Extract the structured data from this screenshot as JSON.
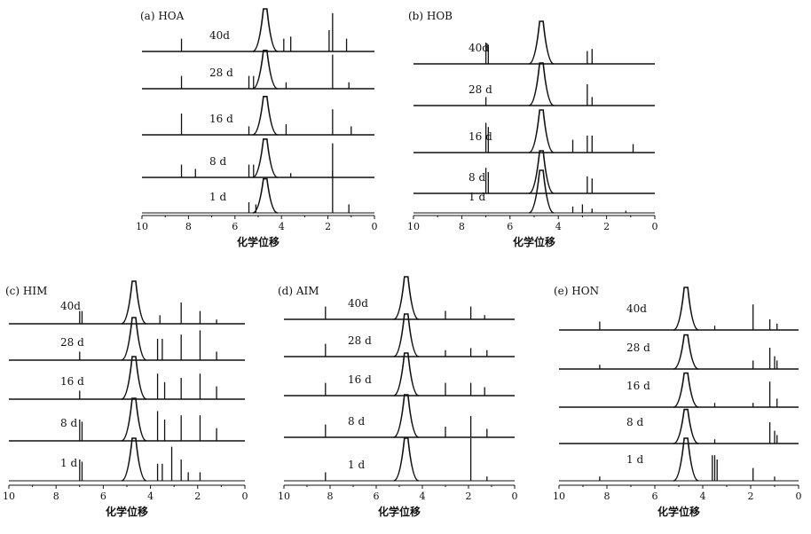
{
  "figure": {
    "x_axis_label": "化学位移"
  },
  "chart_data": [
    {
      "type": "line",
      "title": "(a) HOA",
      "xlabel": "化学位移",
      "xlim": [
        10,
        0
      ],
      "x_ticks": [
        10,
        8,
        6,
        4,
        2,
        0
      ],
      "series": [
        {
          "name": "40d",
          "peaks": [
            [
              8.3,
              0.3
            ],
            [
              4.7,
              1.0
            ],
            [
              3.9,
              0.3
            ],
            [
              3.6,
              0.35
            ],
            [
              1.95,
              0.5
            ],
            [
              1.8,
              0.9
            ],
            [
              1.2,
              0.3
            ]
          ]
        },
        {
          "name": "28 d",
          "peaks": [
            [
              8.3,
              0.3
            ],
            [
              5.4,
              0.3
            ],
            [
              5.2,
              0.3
            ],
            [
              4.7,
              0.9
            ],
            [
              3.8,
              0.15
            ],
            [
              1.8,
              0.8
            ],
            [
              1.1,
              0.15
            ]
          ]
        },
        {
          "name": "16 d",
          "peaks": [
            [
              8.3,
              0.5
            ],
            [
              5.4,
              0.2
            ],
            [
              4.7,
              0.9
            ],
            [
              3.8,
              0.25
            ],
            [
              1.8,
              0.6
            ],
            [
              1.0,
              0.2
            ]
          ]
        },
        {
          "name": "8 d",
          "peaks": [
            [
              8.3,
              0.3
            ],
            [
              7.7,
              0.2
            ],
            [
              5.4,
              0.3
            ],
            [
              5.2,
              0.3
            ],
            [
              4.7,
              0.9
            ],
            [
              3.6,
              0.1
            ],
            [
              1.8,
              0.8
            ]
          ]
        },
        {
          "name": "1 d",
          "peaks": [
            [
              5.4,
              0.25
            ],
            [
              5.1,
              0.2
            ],
            [
              4.7,
              0.8
            ],
            [
              1.8,
              1.0
            ],
            [
              1.1,
              0.2
            ]
          ]
        }
      ]
    },
    {
      "type": "line",
      "title": "(b) HOB",
      "xlabel": "化学位移",
      "xlim": [
        10,
        0
      ],
      "x_ticks": [
        10,
        8,
        6,
        4,
        2,
        0
      ],
      "series": [
        {
          "name": "40d",
          "peaks": [
            [
              7.0,
              0.5
            ],
            [
              6.9,
              0.45
            ],
            [
              4.7,
              1.0
            ],
            [
              2.8,
              0.3
            ],
            [
              2.6,
              0.35
            ]
          ]
        },
        {
          "name": "28 d",
          "peaks": [
            [
              7.0,
              0.2
            ],
            [
              4.7,
              1.0
            ],
            [
              2.8,
              0.5
            ],
            [
              2.6,
              0.2
            ]
          ]
        },
        {
          "name": "16 d",
          "peaks": [
            [
              7.0,
              0.7
            ],
            [
              6.9,
              0.6
            ],
            [
              4.7,
              1.0
            ],
            [
              3.4,
              0.3
            ],
            [
              2.8,
              0.4
            ],
            [
              2.6,
              0.4
            ],
            [
              0.9,
              0.2
            ]
          ]
        },
        {
          "name": "8 d",
          "peaks": [
            [
              7.0,
              0.6
            ],
            [
              6.9,
              0.5
            ],
            [
              4.7,
              1.0
            ],
            [
              2.8,
              0.4
            ],
            [
              2.6,
              0.35
            ]
          ]
        },
        {
          "name": "1 d",
          "peaks": [
            [
              4.7,
              1.0
            ],
            [
              3.4,
              0.15
            ],
            [
              3.0,
              0.2
            ],
            [
              2.6,
              0.1
            ],
            [
              1.2,
              0.05
            ]
          ]
        }
      ]
    },
    {
      "type": "line",
      "title": "(c) HIM",
      "xlabel": "化学位移",
      "xlim": [
        10,
        0
      ],
      "x_ticks": [
        10,
        8,
        6,
        4,
        2,
        0
      ],
      "series": [
        {
          "name": "40d",
          "peaks": [
            [
              7.0,
              0.3
            ],
            [
              6.9,
              0.3
            ],
            [
              4.7,
              1.0
            ],
            [
              3.6,
              0.2
            ],
            [
              2.7,
              0.5
            ],
            [
              1.9,
              0.3
            ],
            [
              1.2,
              0.1
            ]
          ]
        },
        {
          "name": "28 d",
          "peaks": [
            [
              7.0,
              0.2
            ],
            [
              4.7,
              1.0
            ],
            [
              3.7,
              0.5
            ],
            [
              3.5,
              0.5
            ],
            [
              2.7,
              0.6
            ],
            [
              1.9,
              0.7
            ],
            [
              1.2,
              0.2
            ]
          ]
        },
        {
          "name": "16 d",
          "peaks": [
            [
              7.0,
              0.2
            ],
            [
              4.7,
              1.0
            ],
            [
              3.7,
              0.6
            ],
            [
              3.4,
              0.4
            ],
            [
              2.7,
              0.5
            ],
            [
              1.9,
              0.6
            ],
            [
              1.2,
              0.3
            ]
          ]
        },
        {
          "name": "8 d",
          "peaks": [
            [
              7.0,
              0.5
            ],
            [
              6.9,
              0.45
            ],
            [
              4.7,
              1.0
            ],
            [
              3.7,
              0.7
            ],
            [
              3.4,
              0.5
            ],
            [
              2.7,
              0.6
            ],
            [
              1.9,
              0.6
            ],
            [
              1.2,
              0.3
            ]
          ]
        },
        {
          "name": "1 d",
          "peaks": [
            [
              7.0,
              0.5
            ],
            [
              6.9,
              0.45
            ],
            [
              4.7,
              1.0
            ],
            [
              3.7,
              0.4
            ],
            [
              3.5,
              0.4
            ],
            [
              3.1,
              0.8
            ],
            [
              2.7,
              0.5
            ],
            [
              2.4,
              0.2
            ],
            [
              1.9,
              0.2
            ]
          ]
        }
      ]
    },
    {
      "type": "line",
      "title": "(d) AIM",
      "xlabel": "化学位移",
      "xlim": [
        10,
        0
      ],
      "x_ticks": [
        10,
        8,
        6,
        4,
        2,
        0
      ],
      "series": [
        {
          "name": "40d",
          "peaks": [
            [
              8.2,
              0.3
            ],
            [
              4.7,
              1.0
            ],
            [
              3.0,
              0.2
            ],
            [
              1.9,
              0.3
            ],
            [
              1.3,
              0.1
            ]
          ]
        },
        {
          "name": "28 d",
          "peaks": [
            [
              8.2,
              0.3
            ],
            [
              4.7,
              1.0
            ],
            [
              3.0,
              0.15
            ],
            [
              1.9,
              0.2
            ],
            [
              1.2,
              0.15
            ]
          ]
        },
        {
          "name": "16 d",
          "peaks": [
            [
              8.2,
              0.3
            ],
            [
              4.7,
              1.0
            ],
            [
              3.0,
              0.3
            ],
            [
              1.9,
              0.3
            ],
            [
              1.3,
              0.2
            ]
          ]
        },
        {
          "name": "8 d",
          "peaks": [
            [
              8.2,
              0.3
            ],
            [
              4.7,
              1.0
            ],
            [
              3.0,
              0.25
            ],
            [
              1.9,
              0.5
            ],
            [
              1.2,
              0.2
            ]
          ]
        },
        {
          "name": "1 d",
          "peaks": [
            [
              8.2,
              0.2
            ],
            [
              4.7,
              1.0
            ],
            [
              1.9,
              1.0
            ],
            [
              1.2,
              0.1
            ]
          ]
        }
      ]
    },
    {
      "type": "line",
      "title": "(e) HON",
      "xlabel": "化学位移",
      "xlim": [
        10,
        0
      ],
      "x_ticks": [
        10,
        8,
        6,
        4,
        2,
        0
      ],
      "series": [
        {
          "name": "40d",
          "peaks": [
            [
              8.3,
              0.2
            ],
            [
              4.7,
              1.0
            ],
            [
              3.5,
              0.1
            ],
            [
              1.9,
              0.6
            ],
            [
              1.2,
              0.25
            ],
            [
              0.9,
              0.15
            ]
          ]
        },
        {
          "name": "28 d",
          "peaks": [
            [
              8.3,
              0.1
            ],
            [
              4.7,
              0.8
            ],
            [
              1.9,
              0.2
            ],
            [
              1.2,
              0.5
            ],
            [
              1.0,
              0.3
            ],
            [
              0.9,
              0.2
            ]
          ]
        },
        {
          "name": "16 d",
          "peaks": [
            [
              4.7,
              0.8
            ],
            [
              3.5,
              0.1
            ],
            [
              1.9,
              0.1
            ],
            [
              1.2,
              0.6
            ],
            [
              0.9,
              0.2
            ]
          ]
        },
        {
          "name": "8 d",
          "peaks": [
            [
              4.7,
              0.8
            ],
            [
              3.5,
              0.1
            ],
            [
              1.2,
              0.5
            ],
            [
              1.0,
              0.3
            ],
            [
              0.9,
              0.2
            ]
          ]
        },
        {
          "name": "1 d",
          "peaks": [
            [
              8.3,
              0.1
            ],
            [
              4.7,
              1.0
            ],
            [
              3.6,
              0.6
            ],
            [
              3.5,
              0.6
            ],
            [
              3.4,
              0.5
            ],
            [
              1.9,
              0.3
            ],
            [
              1.0,
              0.1
            ]
          ]
        }
      ]
    }
  ]
}
